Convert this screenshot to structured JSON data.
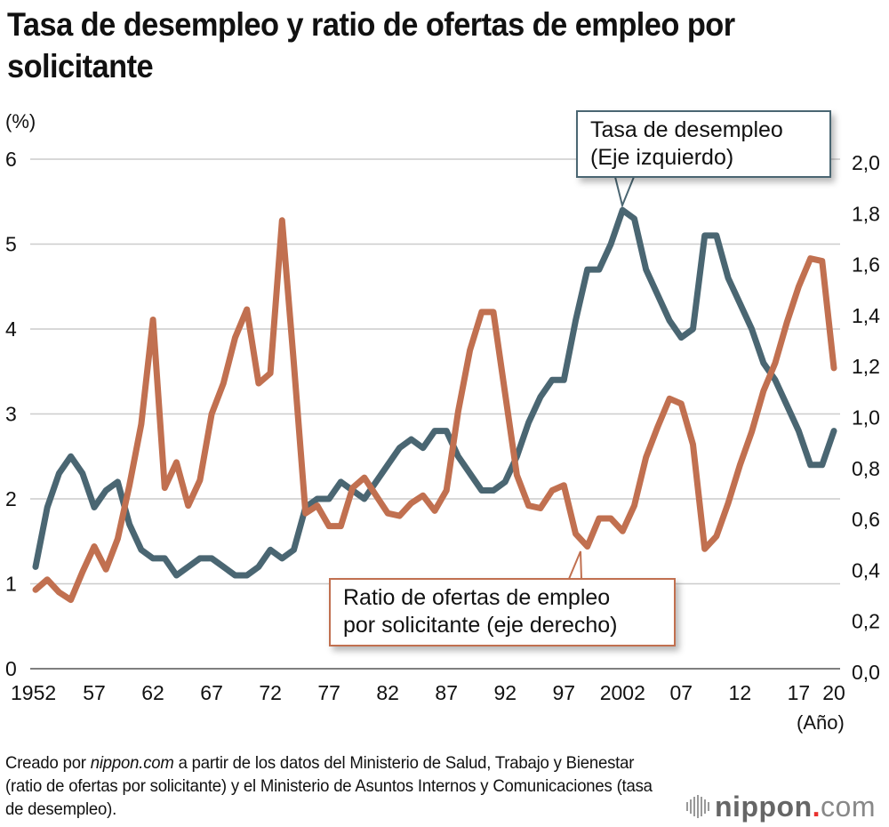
{
  "header": {
    "title": "Tasa de desempleo y ratio de ofertas de empleo por solicitante"
  },
  "axes": {
    "left_unit": "(%)",
    "x_unit": "(Año)"
  },
  "callouts": {
    "unemployment_line1": "Tasa de desempleo",
    "unemployment_line2": "(Eje izquierdo)",
    "ratio_line1": "Ratio de ofertas de empleo",
    "ratio_line2": "por solicitante (eje derecho)"
  },
  "footer": {
    "source_part1": "Creado por ",
    "source_italic": "nippon.com",
    "source_part2": " a partir de los datos del Ministerio de Salud, Trabajo y Bienestar (ratio de ofertas por solicitante) y el Ministerio de Asuntos Internos y Comunicaciones (tasa de desempleo).",
    "logo_main": "nippon",
    "logo_dot": ".",
    "logo_suffix": "com"
  },
  "colors": {
    "unemployment": "#4a6672",
    "ratio": "#c17050",
    "grid": "#cccccc",
    "axis": "#555555"
  },
  "chart_data": {
    "type": "line",
    "title": "Tasa de desempleo y ratio de ofertas de empleo por solicitante",
    "xlabel": "(Año)",
    "ylabel": "(%)",
    "y2label": "",
    "x": [
      1952,
      1953,
      1954,
      1955,
      1956,
      1957,
      1958,
      1959,
      1960,
      1961,
      1962,
      1963,
      1964,
      1965,
      1966,
      1967,
      1968,
      1969,
      1970,
      1971,
      1972,
      1973,
      1974,
      1975,
      1976,
      1977,
      1978,
      1979,
      1980,
      1981,
      1982,
      1983,
      1984,
      1985,
      1986,
      1987,
      1988,
      1989,
      1990,
      1991,
      1992,
      1993,
      1994,
      1995,
      1996,
      1997,
      1998,
      1999,
      2000,
      2001,
      2002,
      2003,
      2004,
      2005,
      2006,
      2007,
      2008,
      2009,
      2010,
      2011,
      2012,
      2013,
      2014,
      2015,
      2016,
      2017,
      2018,
      2019,
      2020
    ],
    "xlim": [
      1952,
      2020
    ],
    "x_ticks": [
      1952,
      1957,
      1962,
      1967,
      1972,
      1977,
      1982,
      1987,
      1992,
      1997,
      2002,
      2007,
      2012,
      2017,
      2020
    ],
    "x_tick_labels": [
      "1952",
      "57",
      "62",
      "67",
      "72",
      "77",
      "82",
      "87",
      "92",
      "97",
      "2002",
      "07",
      "12",
      "17",
      "20"
    ],
    "ylim": [
      0,
      6
    ],
    "y_ticks": [
      0,
      1,
      2,
      3,
      4,
      5,
      6
    ],
    "y_tick_labels": [
      "0",
      "1",
      "2",
      "3",
      "4",
      "5",
      "6"
    ],
    "y2lim": [
      0,
      2.0
    ],
    "y2_ticks": [
      0,
      0.2,
      0.4,
      0.6,
      0.8,
      1.0,
      1.2,
      1.4,
      1.6,
      1.8,
      2.0
    ],
    "y2_tick_labels": [
      "0,0",
      "0,2",
      "0,4",
      "0,6",
      "0,8",
      "1,0",
      "1,2",
      "1,4",
      "1,6",
      "1,8",
      "2,0"
    ],
    "grid": true,
    "legend": "callouts",
    "series": [
      {
        "name": "Tasa de desempleo (Eje izquierdo)",
        "axis": "left",
        "values": [
          1.2,
          1.9,
          2.3,
          2.5,
          2.3,
          1.9,
          2.1,
          2.2,
          1.7,
          1.4,
          1.3,
          1.3,
          1.1,
          1.2,
          1.3,
          1.3,
          1.2,
          1.1,
          1.1,
          1.2,
          1.4,
          1.3,
          1.4,
          1.9,
          2.0,
          2.0,
          2.2,
          2.1,
          2.0,
          2.2,
          2.4,
          2.6,
          2.7,
          2.6,
          2.8,
          2.8,
          2.5,
          2.3,
          2.1,
          2.1,
          2.2,
          2.5,
          2.9,
          3.2,
          3.4,
          3.4,
          4.1,
          4.7,
          4.7,
          5.0,
          5.4,
          5.3,
          4.7,
          4.4,
          4.1,
          3.9,
          4.0,
          5.1,
          5.1,
          4.6,
          4.3,
          4.0,
          3.6,
          3.4,
          3.1,
          2.8,
          2.4,
          2.4,
          2.8
        ]
      },
      {
        "name": "Ratio de ofertas de empleo por solicitante (eje derecho)",
        "axis": "right",
        "values": [
          0.31,
          0.35,
          0.3,
          0.27,
          0.38,
          0.48,
          0.39,
          0.51,
          0.72,
          0.96,
          1.37,
          0.71,
          0.81,
          0.64,
          0.74,
          1.0,
          1.12,
          1.3,
          1.41,
          1.12,
          1.16,
          1.76,
          1.2,
          0.61,
          0.64,
          0.56,
          0.56,
          0.71,
          0.75,
          0.68,
          0.61,
          0.6,
          0.65,
          0.68,
          0.62,
          0.7,
          1.01,
          1.25,
          1.4,
          1.4,
          1.08,
          0.76,
          0.64,
          0.63,
          0.7,
          0.72,
          0.53,
          0.48,
          0.59,
          0.59,
          0.54,
          0.64,
          0.83,
          0.95,
          1.06,
          1.04,
          0.88,
          0.47,
          0.52,
          0.65,
          0.8,
          0.93,
          1.09,
          1.2,
          1.36,
          1.5,
          1.61,
          1.6,
          1.18
        ]
      }
    ]
  }
}
